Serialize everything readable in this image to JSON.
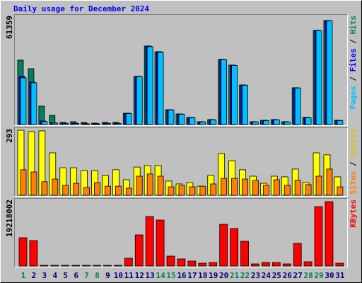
{
  "chart_data": [
    {
      "type": "bar",
      "title": "Daily usage for December 2024",
      "legend_separator": " / ",
      "ylim": [
        0,
        61359
      ],
      "yticks": [
        61359
      ],
      "series": [
        {
          "name": "Hits",
          "color": "#00805c",
          "values": [
            37985,
            32975,
            10853,
            5426,
            1252,
            1670,
            1252,
            835,
            1252,
            1252,
            6679,
            28384,
            46331,
            42993,
            8765,
            6261,
            4174,
            1670,
            2922,
            38402,
            35063,
            23375,
            1670,
            2504,
            2922,
            1670,
            21705,
            4174,
            55514,
            61359,
            2504
          ]
        },
        {
          "name": "Files",
          "color": "#0000ff",
          "values": [
            28384,
            25044,
            2087,
            1044,
            835,
            835,
            626,
            626,
            835,
            835,
            6679,
            28384,
            46331,
            42993,
            8765,
            6261,
            4174,
            1670,
            2922,
            38402,
            35063,
            23375,
            1670,
            2504,
            2922,
            1670,
            21705,
            4174,
            55514,
            61359,
            2504
          ]
        },
        {
          "name": "Pages",
          "color": "#00c0ff",
          "values": [
            27549,
            24627,
            1670,
            835,
            626,
            626,
            418,
            418,
            626,
            626,
            6470,
            28175,
            45913,
            42575,
            8557,
            6052,
            3965,
            1461,
            2713,
            38193,
            34854,
            23166,
            1461,
            2295,
            2713,
            1461,
            21496,
            3965,
            55305,
            61150,
            2295
          ]
        }
      ]
    },
    {
      "type": "bar",
      "legend_separator": " / ",
      "ylim": [
        0,
        293
      ],
      "yticks": [
        293
      ],
      "series": [
        {
          "name": "Visits",
          "color": "#ffff00",
          "values": [
            293,
            287,
            290,
            191,
            124,
            124,
            111,
            111,
            89,
            115,
            70,
            127,
            134,
            134,
            64,
            51,
            57,
            41,
            89,
            188,
            156,
            115,
            86,
            54,
            86,
            83,
            118,
            57,
            191,
            182,
            83
          ]
        },
        {
          "name": "Sites",
          "color": "#ff8000",
          "values": [
            115,
            105,
            61,
            73,
            45,
            54,
            35,
            57,
            41,
            41,
            32,
            86,
            96,
            86,
            38,
            45,
            38,
            41,
            51,
            76,
            76,
            73,
            67,
            45,
            70,
            45,
            67,
            48,
            86,
            118,
            38
          ]
        }
      ]
    },
    {
      "type": "bar",
      "ylim": [
        0,
        19218002
      ],
      "yticks": [
        19218002
      ],
      "categories": [
        "1",
        "2",
        "3",
        "4",
        "5",
        "6",
        "7",
        "8",
        "9",
        "10",
        "11",
        "12",
        "13",
        "14",
        "15",
        "16",
        "17",
        "18",
        "19",
        "20",
        "21",
        "22",
        "23",
        "24",
        "25",
        "26",
        "27",
        "28",
        "29",
        "30",
        "31"
      ],
      "label_colors": [
        "#00805c",
        "#000080",
        "#000080",
        "#000080",
        "#000080",
        "#000080",
        "#00805c",
        "#00805c",
        "#000080",
        "#000080",
        "#000080",
        "#000080",
        "#000080",
        "#00805c",
        "#00805c",
        "#000080",
        "#000080",
        "#000080",
        "#000080",
        "#000080",
        "#00805c",
        "#00805c",
        "#000080",
        "#000080",
        "#000080",
        "#000080",
        "#000080",
        "#00805c",
        "#00805c",
        "#000080",
        "#000080"
      ],
      "series": [
        {
          "name": "KBytes",
          "color": "#ff0000",
          "values": [
            8447473,
            7602726,
            211187,
            211187,
            211187,
            211187,
            211187,
            211187,
            211187,
            211187,
            2323076,
            9292220,
            14782859,
            13726927,
            2956615,
            2111868,
            1478308,
            844747,
            1055934,
            12459998,
            11192871,
            7391539,
            633560,
            1055934,
            1055934,
            633560,
            6757978,
            1267120,
            17738926,
            19218002,
            844747
          ]
        }
      ]
    }
  ]
}
